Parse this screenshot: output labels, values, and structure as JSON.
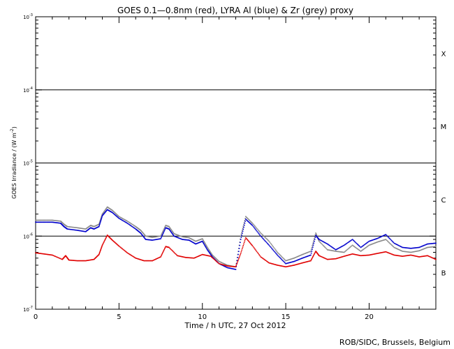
{
  "chart_data": {
    "type": "line",
    "title": "GOES 0.1—0.8nm (red), LYRA Al (blue) & Zr (grey) proxy",
    "xlabel": "Time / h UTC, 27 Oct 2012",
    "ylabel": "GOES Irradiance / (W m",
    "ylabel_exp": "-2",
    "ylabel_close": ")",
    "footer": "ROB/SIDC, Brussels, Belgium",
    "scale": "log",
    "xlim": [
      0,
      24
    ],
    "ylim_exponents": [
      -7,
      -3
    ],
    "x_ticks": [
      "0",
      "5",
      "10",
      "15",
      "20"
    ],
    "y_ticks": [
      {
        "base": "10",
        "exp": "-7"
      },
      {
        "base": "10",
        "exp": "-6"
      },
      {
        "base": "10",
        "exp": "-5"
      },
      {
        "base": "10",
        "exp": "-4"
      },
      {
        "base": "10",
        "exp": "-3"
      }
    ],
    "flare_classes": [
      {
        "label": "B",
        "exponent": -6.5
      },
      {
        "label": "C",
        "exponent": -5.5
      },
      {
        "label": "M",
        "exponent": -4.5
      },
      {
        "label": "X",
        "exponent": -3.5
      }
    ],
    "threshold_lines_exponents": [
      -6,
      -5,
      -4
    ],
    "colors": {
      "goes": "#e00000",
      "al": "#0000cc",
      "zr": "#888888",
      "axis": "#000000"
    },
    "series": [
      {
        "name": "GOES 0.1—0.8nm",
        "color": "#e00000",
        "points": [
          [
            0.0,
            5.9e-07
          ],
          [
            0.5,
            5.7e-07
          ],
          [
            1.0,
            5.5e-07
          ],
          [
            1.6,
            4.8e-07
          ],
          [
            1.8,
            5.4e-07
          ],
          [
            2.0,
            4.7e-07
          ],
          [
            2.5,
            4.6e-07
          ],
          [
            3.0,
            4.6e-07
          ],
          [
            3.5,
            4.8e-07
          ],
          [
            3.8,
            5.6e-07
          ],
          [
            4.0,
            7.5e-07
          ],
          [
            4.3,
            1.03e-06
          ],
          [
            4.6,
            8.8e-07
          ],
          [
            5.0,
            7.3e-07
          ],
          [
            5.5,
            5.9e-07
          ],
          [
            6.0,
            5e-07
          ],
          [
            6.5,
            4.6e-07
          ],
          [
            7.0,
            4.6e-07
          ],
          [
            7.5,
            5.2e-07
          ],
          [
            7.8,
            7.2e-07
          ],
          [
            8.0,
            7e-07
          ],
          [
            8.5,
            5.4e-07
          ],
          [
            9.0,
            5.1e-07
          ],
          [
            9.5,
            5e-07
          ],
          [
            10.0,
            5.6e-07
          ],
          [
            10.5,
            5.3e-07
          ],
          [
            11.0,
            4.2e-07
          ],
          [
            11.5,
            3.9e-07
          ],
          [
            12.0,
            3.8e-07
          ],
          [
            12.3,
            5.8e-07
          ],
          [
            12.6,
            9.5e-07
          ],
          [
            13.0,
            7.4e-07
          ],
          [
            13.5,
            5.2e-07
          ],
          [
            14.0,
            4.3e-07
          ],
          [
            14.5,
            4e-07
          ],
          [
            15.0,
            3.8e-07
          ],
          [
            15.5,
            4e-07
          ],
          [
            16.0,
            4.3e-07
          ],
          [
            16.5,
            4.6e-07
          ],
          [
            16.8,
            6.2e-07
          ],
          [
            17.0,
            5.4e-07
          ],
          [
            17.5,
            4.8e-07
          ],
          [
            18.0,
            4.9e-07
          ],
          [
            18.5,
            5.3e-07
          ],
          [
            19.0,
            5.7e-07
          ],
          [
            19.5,
            5.4e-07
          ],
          [
            20.0,
            5.5e-07
          ],
          [
            20.5,
            5.8e-07
          ],
          [
            21.0,
            6.1e-07
          ],
          [
            21.5,
            5.5e-07
          ],
          [
            22.0,
            5.3e-07
          ],
          [
            22.5,
            5.5e-07
          ],
          [
            23.0,
            5.2e-07
          ],
          [
            23.5,
            5.4e-07
          ],
          [
            24.0,
            4.8e-07
          ]
        ]
      },
      {
        "name": "LYRA Al proxy",
        "color": "#0000cc",
        "points": [
          [
            0.0,
            1.55e-06
          ],
          [
            0.5,
            1.55e-06
          ],
          [
            1.0,
            1.55e-06
          ],
          [
            1.5,
            1.5e-06
          ],
          [
            1.7,
            1.35e-06
          ],
          [
            1.9,
            1.25e-06
          ],
          [
            2.5,
            1.2e-06
          ],
          [
            3.0,
            1.15e-06
          ],
          [
            3.3,
            1.3e-06
          ],
          [
            3.5,
            1.25e-06
          ],
          [
            3.8,
            1.35e-06
          ],
          [
            4.0,
            1.9e-06
          ],
          [
            4.3,
            2.3e-06
          ],
          [
            4.6,
            2.1e-06
          ],
          [
            5.0,
            1.75e-06
          ],
          [
            5.5,
            1.5e-06
          ],
          [
            6.0,
            1.25e-06
          ],
          [
            6.3,
            1.1e-06
          ],
          [
            6.6,
            9e-07
          ],
          [
            7.0,
            8.8e-07
          ],
          [
            7.5,
            9.2e-07
          ],
          [
            7.8,
            1.3e-06
          ],
          [
            8.0,
            1.25e-06
          ],
          [
            8.3,
            1e-06
          ],
          [
            8.8,
            9e-07
          ],
          [
            9.2,
            8.8e-07
          ],
          [
            9.6,
            7.8e-07
          ],
          [
            10.0,
            8.5e-07
          ],
          [
            10.3,
            6.5e-07
          ],
          [
            10.6,
            5.2e-07
          ],
          [
            11.0,
            4.2e-07
          ],
          [
            11.5,
            3.7e-07
          ],
          [
            12.0,
            3.5e-07
          ],
          [
            12.3,
            9e-07
          ],
          [
            12.6,
            1.7e-06
          ],
          [
            13.0,
            1.4e-06
          ],
          [
            13.5,
            1e-06
          ],
          [
            14.0,
            7.5e-07
          ],
          [
            14.5,
            5.5e-07
          ],
          [
            15.0,
            4.2e-07
          ],
          [
            15.5,
            4.5e-07
          ],
          [
            16.0,
            5e-07
          ],
          [
            16.5,
            5.5e-07
          ],
          [
            16.8,
            1.02e-06
          ],
          [
            17.0,
            9e-07
          ],
          [
            17.5,
            7.8e-07
          ],
          [
            18.0,
            6.5e-07
          ],
          [
            18.5,
            7.5e-07
          ],
          [
            19.0,
            9e-07
          ],
          [
            19.5,
            7e-07
          ],
          [
            20.0,
            8.5e-07
          ],
          [
            20.5,
            9.3e-07
          ],
          [
            21.0,
            1.05e-06
          ],
          [
            21.5,
            8e-07
          ],
          [
            22.0,
            7e-07
          ],
          [
            22.5,
            6.8e-07
          ],
          [
            23.0,
            7e-07
          ],
          [
            23.5,
            7.8e-07
          ],
          [
            24.0,
            8e-07
          ]
        ]
      },
      {
        "name": "LYRA Zr proxy",
        "color": "#888888",
        "points": [
          [
            0.0,
            1.65e-06
          ],
          [
            0.5,
            1.65e-06
          ],
          [
            1.0,
            1.65e-06
          ],
          [
            1.5,
            1.6e-06
          ],
          [
            1.7,
            1.45e-06
          ],
          [
            1.9,
            1.35e-06
          ],
          [
            2.5,
            1.3e-06
          ],
          [
            3.0,
            1.25e-06
          ],
          [
            3.3,
            1.4e-06
          ],
          [
            3.5,
            1.35e-06
          ],
          [
            3.8,
            1.45e-06
          ],
          [
            4.0,
            2e-06
          ],
          [
            4.3,
            2.5e-06
          ],
          [
            4.6,
            2.25e-06
          ],
          [
            5.0,
            1.85e-06
          ],
          [
            5.5,
            1.6e-06
          ],
          [
            6.0,
            1.35e-06
          ],
          [
            6.3,
            1.2e-06
          ],
          [
            6.6,
            1e-06
          ],
          [
            7.0,
            9.6e-07
          ],
          [
            7.5,
            1e-06
          ],
          [
            7.8,
            1.4e-06
          ],
          [
            8.0,
            1.35e-06
          ],
          [
            8.3,
            1.08e-06
          ],
          [
            8.8,
            9.8e-07
          ],
          [
            9.2,
            9.5e-07
          ],
          [
            9.6,
            8.5e-07
          ],
          [
            10.0,
            9.2e-07
          ],
          [
            10.3,
            7e-07
          ],
          [
            10.6,
            5.5e-07
          ],
          [
            11.0,
            4.5e-07
          ],
          [
            11.5,
            4e-07
          ],
          [
            12.0,
            3.8e-07
          ],
          [
            12.3,
            1e-06
          ],
          [
            12.6,
            1.85e-06
          ],
          [
            13.0,
            1.5e-06
          ],
          [
            13.5,
            1.1e-06
          ],
          [
            14.0,
            8.5e-07
          ],
          [
            14.5,
            6e-07
          ],
          [
            15.0,
            4.6e-07
          ],
          [
            15.5,
            5e-07
          ],
          [
            16.0,
            5.6e-07
          ],
          [
            16.5,
            6.2e-07
          ],
          [
            16.8,
            1.1e-06
          ],
          [
            17.0,
            8.5e-07
          ],
          [
            17.5,
            6.5e-07
          ],
          [
            18.0,
            6.2e-07
          ],
          [
            18.5,
            6e-07
          ],
          [
            19.0,
            7.5e-07
          ],
          [
            19.5,
            6.2e-07
          ],
          [
            20.0,
            7.5e-07
          ],
          [
            20.5,
            8.3e-07
          ],
          [
            21.0,
            9e-07
          ],
          [
            21.5,
            7e-07
          ],
          [
            22.0,
            6.2e-07
          ],
          [
            22.5,
            6e-07
          ],
          [
            23.0,
            6.3e-07
          ],
          [
            23.5,
            7e-07
          ],
          [
            24.0,
            7.2e-07
          ]
        ]
      }
    ]
  }
}
